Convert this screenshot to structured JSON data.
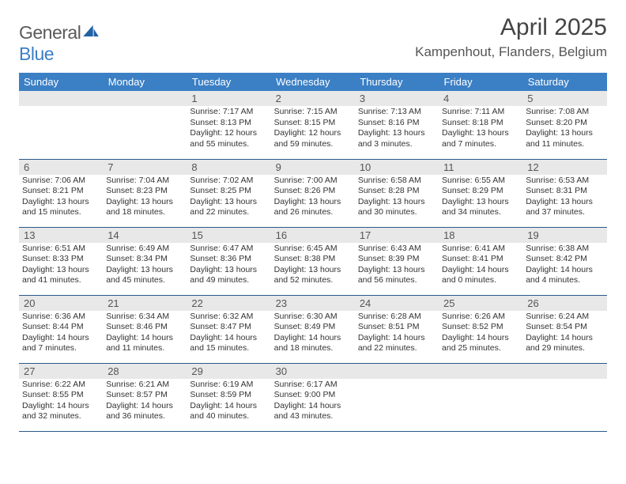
{
  "brand": {
    "word1": "General",
    "word2": "Blue",
    "icon_color": "#2062a6"
  },
  "title": "April 2025",
  "location": "Kampenhout, Flanders, Belgium",
  "colors": {
    "header_bg": "#3b7fc4",
    "header_text": "#ffffff",
    "row_border": "#2b5a8a",
    "daynum_bg": "#e8e8e8",
    "body_text": "#333333"
  },
  "weekdays": [
    "Sunday",
    "Monday",
    "Tuesday",
    "Wednesday",
    "Thursday",
    "Friday",
    "Saturday"
  ],
  "weeks": [
    [
      {
        "day": ""
      },
      {
        "day": ""
      },
      {
        "day": "1",
        "sunrise": "Sunrise: 7:17 AM",
        "sunset": "Sunset: 8:13 PM",
        "daylight": "Daylight: 12 hours and 55 minutes."
      },
      {
        "day": "2",
        "sunrise": "Sunrise: 7:15 AM",
        "sunset": "Sunset: 8:15 PM",
        "daylight": "Daylight: 12 hours and 59 minutes."
      },
      {
        "day": "3",
        "sunrise": "Sunrise: 7:13 AM",
        "sunset": "Sunset: 8:16 PM",
        "daylight": "Daylight: 13 hours and 3 minutes."
      },
      {
        "day": "4",
        "sunrise": "Sunrise: 7:11 AM",
        "sunset": "Sunset: 8:18 PM",
        "daylight": "Daylight: 13 hours and 7 minutes."
      },
      {
        "day": "5",
        "sunrise": "Sunrise: 7:08 AM",
        "sunset": "Sunset: 8:20 PM",
        "daylight": "Daylight: 13 hours and 11 minutes."
      }
    ],
    [
      {
        "day": "6",
        "sunrise": "Sunrise: 7:06 AM",
        "sunset": "Sunset: 8:21 PM",
        "daylight": "Daylight: 13 hours and 15 minutes."
      },
      {
        "day": "7",
        "sunrise": "Sunrise: 7:04 AM",
        "sunset": "Sunset: 8:23 PM",
        "daylight": "Daylight: 13 hours and 18 minutes."
      },
      {
        "day": "8",
        "sunrise": "Sunrise: 7:02 AM",
        "sunset": "Sunset: 8:25 PM",
        "daylight": "Daylight: 13 hours and 22 minutes."
      },
      {
        "day": "9",
        "sunrise": "Sunrise: 7:00 AM",
        "sunset": "Sunset: 8:26 PM",
        "daylight": "Daylight: 13 hours and 26 minutes."
      },
      {
        "day": "10",
        "sunrise": "Sunrise: 6:58 AM",
        "sunset": "Sunset: 8:28 PM",
        "daylight": "Daylight: 13 hours and 30 minutes."
      },
      {
        "day": "11",
        "sunrise": "Sunrise: 6:55 AM",
        "sunset": "Sunset: 8:29 PM",
        "daylight": "Daylight: 13 hours and 34 minutes."
      },
      {
        "day": "12",
        "sunrise": "Sunrise: 6:53 AM",
        "sunset": "Sunset: 8:31 PM",
        "daylight": "Daylight: 13 hours and 37 minutes."
      }
    ],
    [
      {
        "day": "13",
        "sunrise": "Sunrise: 6:51 AM",
        "sunset": "Sunset: 8:33 PM",
        "daylight": "Daylight: 13 hours and 41 minutes."
      },
      {
        "day": "14",
        "sunrise": "Sunrise: 6:49 AM",
        "sunset": "Sunset: 8:34 PM",
        "daylight": "Daylight: 13 hours and 45 minutes."
      },
      {
        "day": "15",
        "sunrise": "Sunrise: 6:47 AM",
        "sunset": "Sunset: 8:36 PM",
        "daylight": "Daylight: 13 hours and 49 minutes."
      },
      {
        "day": "16",
        "sunrise": "Sunrise: 6:45 AM",
        "sunset": "Sunset: 8:38 PM",
        "daylight": "Daylight: 13 hours and 52 minutes."
      },
      {
        "day": "17",
        "sunrise": "Sunrise: 6:43 AM",
        "sunset": "Sunset: 8:39 PM",
        "daylight": "Daylight: 13 hours and 56 minutes."
      },
      {
        "day": "18",
        "sunrise": "Sunrise: 6:41 AM",
        "sunset": "Sunset: 8:41 PM",
        "daylight": "Daylight: 14 hours and 0 minutes."
      },
      {
        "day": "19",
        "sunrise": "Sunrise: 6:38 AM",
        "sunset": "Sunset: 8:42 PM",
        "daylight": "Daylight: 14 hours and 4 minutes."
      }
    ],
    [
      {
        "day": "20",
        "sunrise": "Sunrise: 6:36 AM",
        "sunset": "Sunset: 8:44 PM",
        "daylight": "Daylight: 14 hours and 7 minutes."
      },
      {
        "day": "21",
        "sunrise": "Sunrise: 6:34 AM",
        "sunset": "Sunset: 8:46 PM",
        "daylight": "Daylight: 14 hours and 11 minutes."
      },
      {
        "day": "22",
        "sunrise": "Sunrise: 6:32 AM",
        "sunset": "Sunset: 8:47 PM",
        "daylight": "Daylight: 14 hours and 15 minutes."
      },
      {
        "day": "23",
        "sunrise": "Sunrise: 6:30 AM",
        "sunset": "Sunset: 8:49 PM",
        "daylight": "Daylight: 14 hours and 18 minutes."
      },
      {
        "day": "24",
        "sunrise": "Sunrise: 6:28 AM",
        "sunset": "Sunset: 8:51 PM",
        "daylight": "Daylight: 14 hours and 22 minutes."
      },
      {
        "day": "25",
        "sunrise": "Sunrise: 6:26 AM",
        "sunset": "Sunset: 8:52 PM",
        "daylight": "Daylight: 14 hours and 25 minutes."
      },
      {
        "day": "26",
        "sunrise": "Sunrise: 6:24 AM",
        "sunset": "Sunset: 8:54 PM",
        "daylight": "Daylight: 14 hours and 29 minutes."
      }
    ],
    [
      {
        "day": "27",
        "sunrise": "Sunrise: 6:22 AM",
        "sunset": "Sunset: 8:55 PM",
        "daylight": "Daylight: 14 hours and 32 minutes."
      },
      {
        "day": "28",
        "sunrise": "Sunrise: 6:21 AM",
        "sunset": "Sunset: 8:57 PM",
        "daylight": "Daylight: 14 hours and 36 minutes."
      },
      {
        "day": "29",
        "sunrise": "Sunrise: 6:19 AM",
        "sunset": "Sunset: 8:59 PM",
        "daylight": "Daylight: 14 hours and 40 minutes."
      },
      {
        "day": "30",
        "sunrise": "Sunrise: 6:17 AM",
        "sunset": "Sunset: 9:00 PM",
        "daylight": "Daylight: 14 hours and 43 minutes."
      },
      {
        "day": ""
      },
      {
        "day": ""
      },
      {
        "day": ""
      }
    ]
  ]
}
